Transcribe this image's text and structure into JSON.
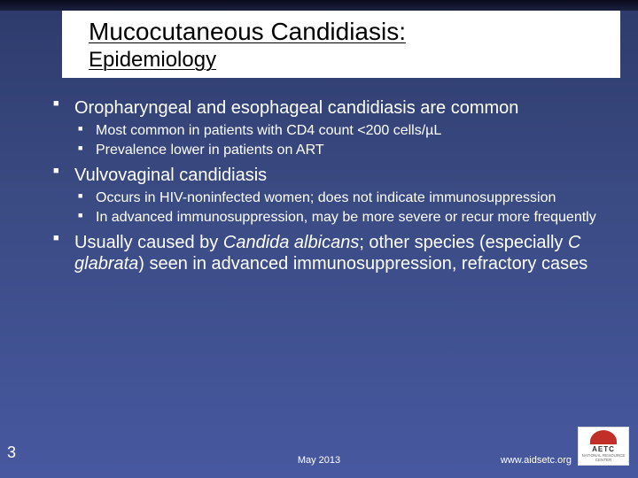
{
  "colors": {
    "background_top": "#2d3a6b",
    "background_bottom": "#4758a0",
    "top_band": "#0a0a1a",
    "title_box_bg": "#ffffff",
    "title_text": "#000000",
    "body_text": "#ffffff",
    "bullet": "#ffffff",
    "logo_bg": "#ffffff",
    "logo_accent": "#c03028"
  },
  "typography": {
    "title_main_size_pt": 28,
    "title_sub_size_pt": 24,
    "level1_size_pt": 20,
    "level2_size_pt": 16,
    "footer_size_pt": 11,
    "slidenum_size_pt": 18,
    "font_family": "Arial"
  },
  "title": {
    "main": "Mucocutaneous Candidiasis:",
    "sub": "Epidemiology"
  },
  "bullets": [
    {
      "text": "Oropharyngeal and esophageal candidiasis are common",
      "children": [
        {
          "text": "Most common in patients with CD4 count <200 cells/µL"
        },
        {
          "text": "Prevalence lower in patients on ART"
        }
      ]
    },
    {
      "text": "Vulvovaginal candidiasis",
      "children": [
        {
          "text": "Occurs in HIV-noninfected women; does not indicate immunosuppression"
        },
        {
          "text": "In advanced immunosuppression, may be more severe or recur more frequently"
        }
      ]
    },
    {
      "html": "Usually caused by <span class=\"italic\">Candida albicans</span>; other species (especially <span class=\"italic\">C glabrata</span>) seen in advanced immunosuppression, refractory cases",
      "text_plain": "Usually caused by Candida albicans; other species (especially C glabrata) seen in advanced immunosuppression, refractory cases"
    }
  ],
  "footer": {
    "slide_number": "3",
    "date": "May 2013",
    "url": "www.aidsetc.org",
    "logo_text": "AETC",
    "logo_sub": "NATIONAL RESOURCE CENTER"
  }
}
